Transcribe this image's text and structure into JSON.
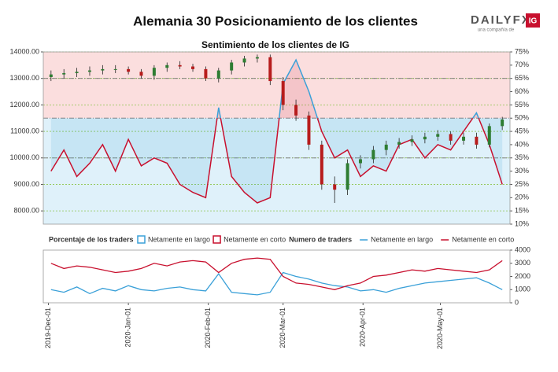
{
  "header": {
    "title": "Alemania 30 Posicionamiento de los clientes",
    "logo": "DAILYFX",
    "logo_sub": "una compañía de",
    "logo_badge": "IG"
  },
  "chart_data": [
    {
      "type": "candlestick",
      "title": "Sentimiento de los clientes de IG",
      "x": [
        "2019-12-02",
        "2019-12-07",
        "2019-12-12",
        "2019-12-17",
        "2019-12-22",
        "2019-12-27",
        "2020-01-01",
        "2020-01-06",
        "2020-01-11",
        "2020-01-16",
        "2020-01-21",
        "2020-01-26",
        "2020-01-31",
        "2020-02-05",
        "2020-02-10",
        "2020-02-15",
        "2020-02-20",
        "2020-02-25",
        "2020-03-01",
        "2020-03-06",
        "2020-03-11",
        "2020-03-16",
        "2020-03-21",
        "2020-03-26",
        "2020-03-31",
        "2020-04-05",
        "2020-04-10",
        "2020-04-15",
        "2020-04-20",
        "2020-04-25",
        "2020-04-30",
        "2020-05-05",
        "2020-05-10",
        "2020-05-15",
        "2020-05-20",
        "2020-05-25"
      ],
      "open": [
        13050,
        13150,
        13200,
        13250,
        13300,
        13350,
        13350,
        13250,
        13100,
        13400,
        13500,
        13450,
        13350,
        13000,
        13300,
        13600,
        13750,
        13800,
        12900,
        12000,
        11600,
        10500,
        9000,
        8800,
        9800,
        9950,
        10300,
        10500,
        10600,
        10700,
        10800,
        10900,
        10650,
        10800,
        10500,
        11200
      ],
      "high": [
        13300,
        13350,
        13400,
        13450,
        13500,
        13500,
        13450,
        13350,
        13500,
        13600,
        13650,
        13550,
        13450,
        13400,
        13700,
        13850,
        13900,
        13900,
        13050,
        12200,
        11750,
        10650,
        9300,
        9950,
        10100,
        10450,
        10650,
        10750,
        10850,
        10950,
        11050,
        11000,
        10950,
        10950,
        11300,
        11550
      ],
      "low": [
        12900,
        13000,
        13050,
        13100,
        13150,
        13200,
        13150,
        13000,
        12950,
        13250,
        13350,
        13250,
        12900,
        12850,
        13150,
        13450,
        13600,
        12750,
        11800,
        11400,
        10300,
        8800,
        8300,
        8600,
        9600,
        9800,
        10100,
        10350,
        10450,
        10550,
        10650,
        10500,
        10500,
        10350,
        10400,
        11050
      ],
      "close": [
        13150,
        13200,
        13250,
        13300,
        13350,
        13350,
        13250,
        13100,
        13400,
        13500,
        13450,
        13350,
        13000,
        13300,
        13600,
        13750,
        13800,
        12900,
        12000,
        11600,
        10500,
        9000,
        8800,
        9800,
        9950,
        10300,
        10500,
        10600,
        10700,
        10800,
        10900,
        10650,
        10800,
        10500,
        11200,
        11450
      ],
      "up_color": "#2e7d32",
      "down_color": "#b71c1c",
      "sentiment": [
        30,
        38,
        28,
        33,
        40,
        30,
        42,
        32,
        35,
        33,
        25,
        22,
        20,
        54,
        28,
        22,
        18,
        20,
        63,
        72,
        60,
        45,
        35,
        38,
        28,
        32,
        30,
        40,
        42,
        35,
        40,
        38,
        45,
        52,
        40,
        25
      ],
      "background_split": 50,
      "y2_reference_lines": [
        65,
        50,
        35
      ],
      "legend": {
        "title": "Porcentaje de los traders",
        "items": [
          {
            "name": "Netamente en largo",
            "color": "#3aa0d8"
          },
          {
            "name": "Netamente en corto",
            "color": "#c8102e"
          }
        ]
      },
      "xlim": [
        "2019-11-29",
        "2020-05-28"
      ],
      "ylim": [
        7500,
        14000
      ],
      "yticks": [
        {
          "value": 8000,
          "label": "8000.00"
        },
        {
          "value": 9000,
          "label": "9000.00"
        },
        {
          "value": 10000,
          "label": "10000.00"
        },
        {
          "value": 11000,
          "label": "11000.00"
        },
        {
          "value": 12000,
          "label": "12000.00"
        },
        {
          "value": 13000,
          "label": "13000.00"
        },
        {
          "value": 14000,
          "label": "14000.00"
        }
      ],
      "y2lim": [
        10,
        75
      ],
      "y2ticks": [
        {
          "value": 10,
          "label": "10%"
        },
        {
          "value": 15,
          "label": "15%"
        },
        {
          "value": 20,
          "label": "20%"
        },
        {
          "value": 25,
          "label": "25%"
        },
        {
          "value": 30,
          "label": "30%"
        },
        {
          "value": 35,
          "label": "35%"
        },
        {
          "value": 40,
          "label": "40%"
        },
        {
          "value": 45,
          "label": "45%"
        },
        {
          "value": 50,
          "label": "50%"
        },
        {
          "value": 55,
          "label": "55%"
        },
        {
          "value": 60,
          "label": "60%"
        },
        {
          "value": 65,
          "label": "65%"
        },
        {
          "value": 70,
          "label": "70%"
        },
        {
          "value": 75,
          "label": "75%"
        }
      ],
      "grid": true
    },
    {
      "type": "line",
      "legend": {
        "title": "Numero de traders"
      },
      "x": [
        "2019-12-02",
        "2019-12-07",
        "2019-12-12",
        "2019-12-17",
        "2019-12-22",
        "2019-12-27",
        "2020-01-01",
        "2020-01-06",
        "2020-01-11",
        "2020-01-16",
        "2020-01-21",
        "2020-01-26",
        "2020-01-31",
        "2020-02-05",
        "2020-02-10",
        "2020-02-15",
        "2020-02-20",
        "2020-02-25",
        "2020-03-01",
        "2020-03-06",
        "2020-03-11",
        "2020-03-16",
        "2020-03-21",
        "2020-03-26",
        "2020-03-31",
        "2020-04-05",
        "2020-04-10",
        "2020-04-15",
        "2020-04-20",
        "2020-04-25",
        "2020-04-30",
        "2020-05-05",
        "2020-05-10",
        "2020-05-15",
        "2020-05-20",
        "2020-05-25"
      ],
      "series": [
        {
          "name": "Netamente en largo",
          "color": "#3aa0d8",
          "values": [
            1000,
            800,
            1200,
            700,
            1100,
            900,
            1300,
            1000,
            900,
            1100,
            1200,
            1000,
            900,
            2200,
            800,
            700,
            600,
            800,
            2300,
            2000,
            1800,
            1500,
            1300,
            1200,
            900,
            1000,
            800,
            1100,
            1300,
            1500,
            1600,
            1700,
            1800,
            1900,
            1500,
            1000
          ]
        },
        {
          "name": "Netamente en corto",
          "color": "#c8102e",
          "values": [
            3000,
            2600,
            2800,
            2700,
            2500,
            2300,
            2400,
            2600,
            3000,
            2800,
            3100,
            3200,
            3100,
            2300,
            3000,
            3300,
            3400,
            3300,
            2000,
            1500,
            1400,
            1200,
            1000,
            1300,
            1500,
            2000,
            2100,
            2300,
            2500,
            2400,
            2600,
            2500,
            2400,
            2300,
            2500,
            3200
          ]
        }
      ],
      "xlim": [
        "2019-11-29",
        "2020-05-28"
      ],
      "xticks": [
        {
          "value": "2019-12-01",
          "label": "2019-Dec-01"
        },
        {
          "value": "2020-01-01",
          "label": "2020-Jan-01"
        },
        {
          "value": "2020-02-01",
          "label": "2020-Feb-01"
        },
        {
          "value": "2020-03-01",
          "label": "2020-Mar-01"
        },
        {
          "value": "2020-04-01",
          "label": "2020-Apr-01"
        },
        {
          "value": "2020-05-01",
          "label": "2020-May-01"
        }
      ],
      "ylim": [
        0,
        4000
      ],
      "yticks": [
        0,
        1000,
        2000,
        3000,
        4000
      ]
    }
  ]
}
